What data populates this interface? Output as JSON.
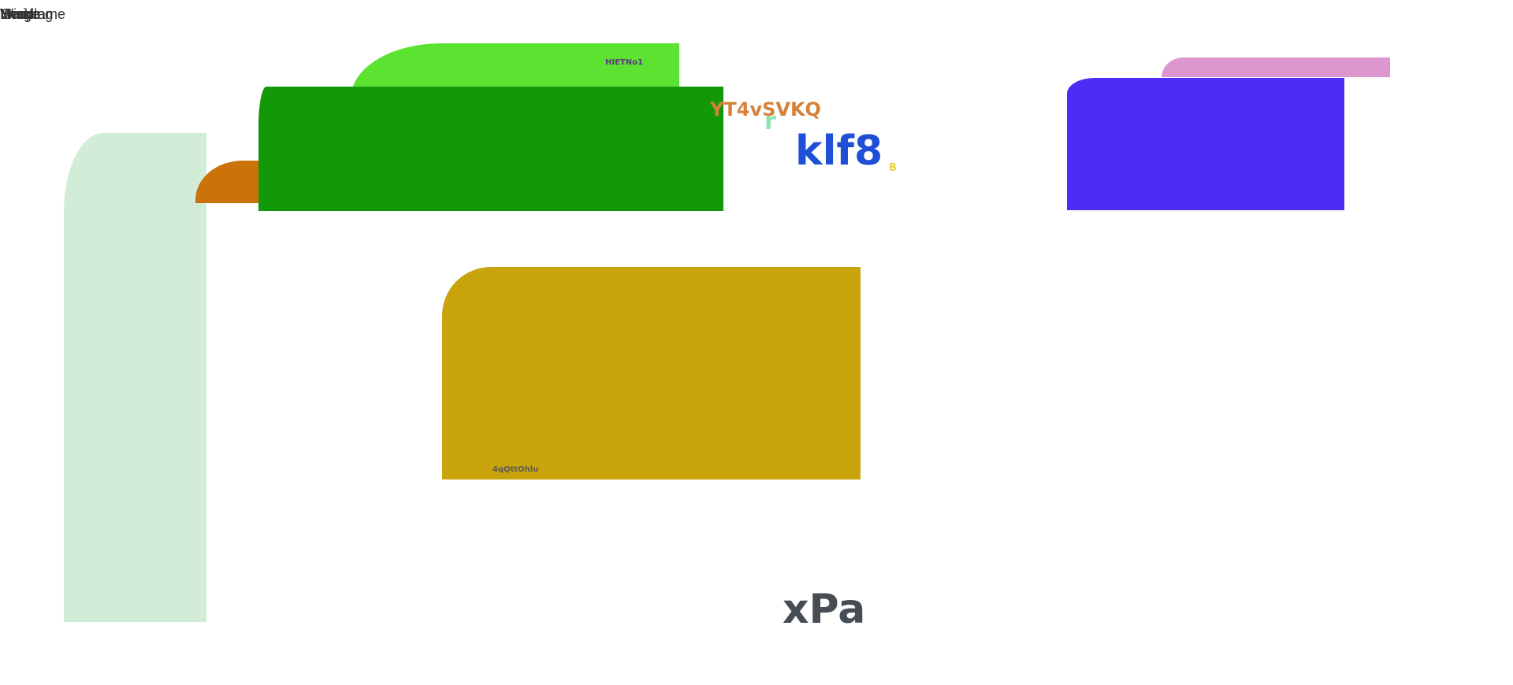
{
  "overlay_labels": [
    "Wireframe",
    "Image",
    "Heading",
    "Mark",
    "Script"
  ],
  "texts": {
    "hietno1": "HIETNo1",
    "yt4vsvkq": "YT4vSVKQ",
    "r": "r",
    "klf8": "klf8",
    "b": "B",
    "qtt": "4qQttOhlu",
    "xpa": "xPa"
  },
  "colors": {
    "mint": "#d1ecd7",
    "orange": "#cc720a",
    "lime": "#5ce332",
    "green": "#13980a",
    "mustard": "#c9a30c",
    "pink": "#dc98ce",
    "violet": "#4e2cf5",
    "text_orange": "#d6813a",
    "text_blue": "#1f4fd6",
    "text_mint": "#8ee3b5",
    "text_yellow": "#e8d33a",
    "text_gray": "#474d55",
    "text_purple": "#5c3a7a"
  }
}
